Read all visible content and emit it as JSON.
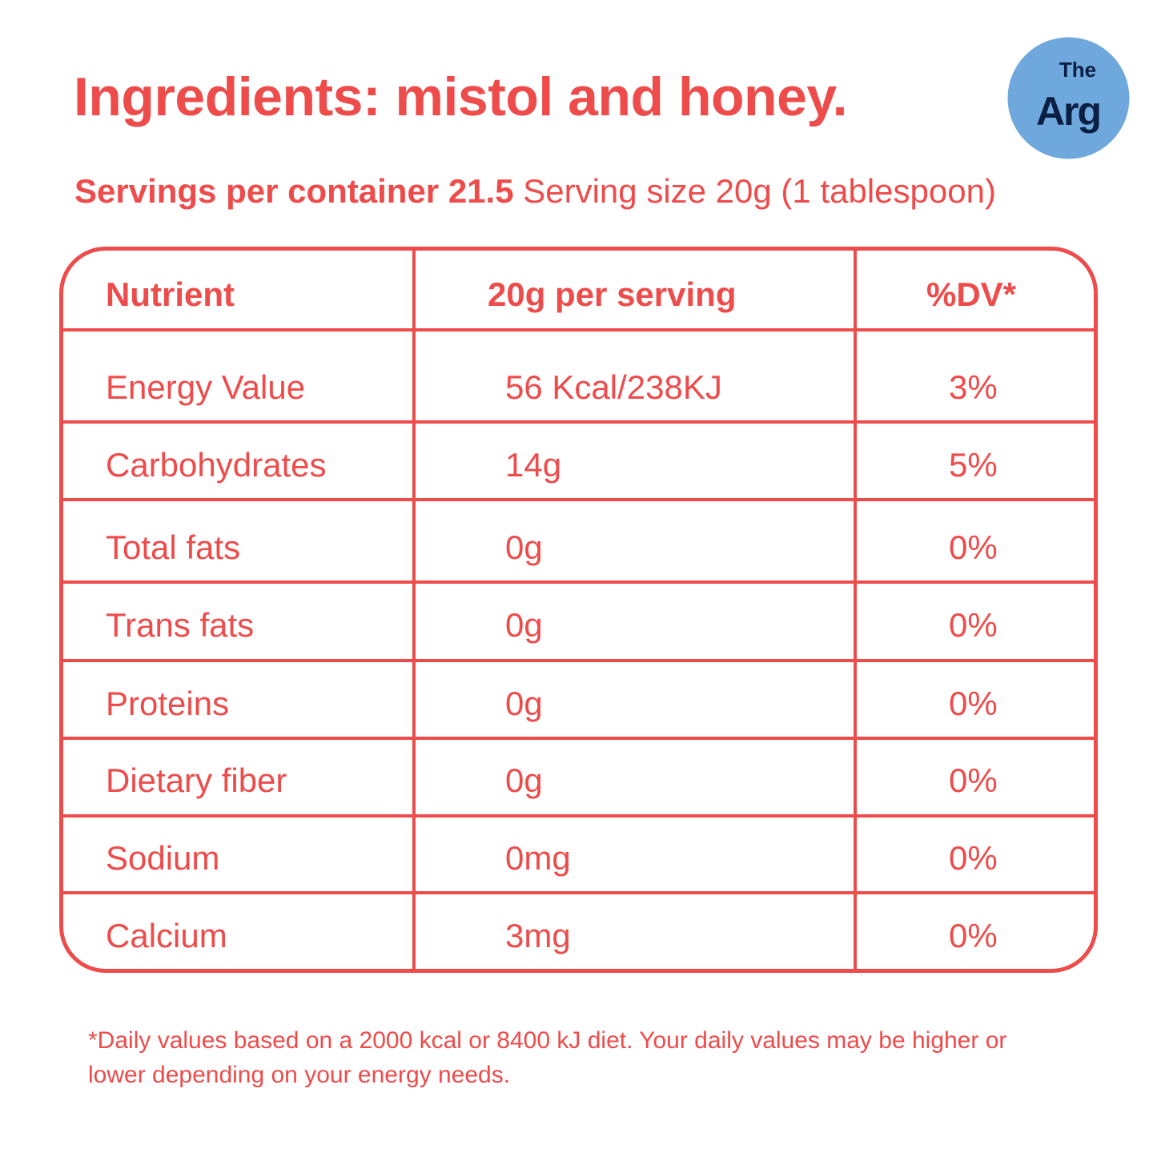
{
  "title": "Ingredients: mistol and honey.",
  "servings": {
    "label_bold": "Servings per container 21.5",
    "label_regular": " Serving size 20g (1 tablespoon)"
  },
  "logo": {
    "text_top": "The",
    "text_bottom": "Arg",
    "bg_color": "#6FA8DC",
    "fg_color": "#0B1F44"
  },
  "accent_color": "#EE4B4B",
  "table": {
    "headers": [
      "Nutrient",
      "20g per serving",
      "%DV*"
    ],
    "rows": [
      {
        "nutrient": "Energy Value",
        "amount": "56 Kcal/238KJ",
        "dv": "3%"
      },
      {
        "nutrient": "Carbohydrates",
        "amount": "14g",
        "dv": "5%"
      },
      {
        "nutrient": "Total fats",
        "amount": "0g",
        "dv": "0%"
      },
      {
        "nutrient": "Trans fats",
        "amount": "0g",
        "dv": "0%"
      },
      {
        "nutrient": "Proteins",
        "amount": "0g",
        "dv": "0%"
      },
      {
        "nutrient": "Dietary fiber",
        "amount": "0g",
        "dv": "0%"
      },
      {
        "nutrient": "Sodium",
        "amount": "0mg",
        "dv": "0%"
      },
      {
        "nutrient": "Calcium",
        "amount": "3mg",
        "dv": "0%"
      }
    ]
  },
  "footnote": "*Daily values based on a 2000 kcal or 8400 kJ diet. Your daily values may be higher or lower depending on your energy needs."
}
